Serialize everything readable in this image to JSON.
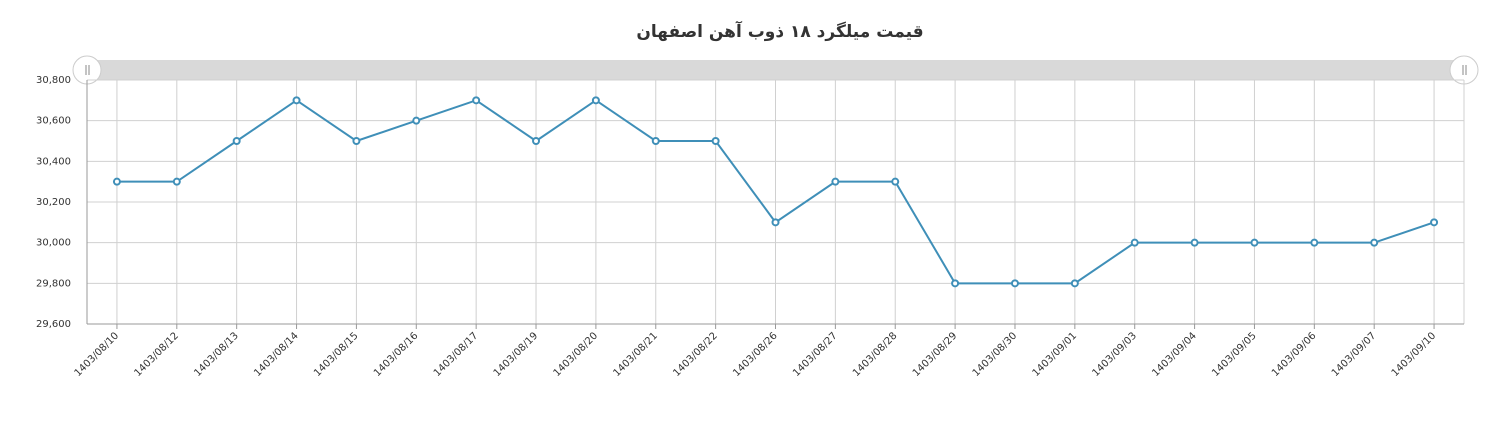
{
  "chart_data": {
    "type": "line",
    "title": "قیمت میلگرد ۱۸ ذوب آهن اصفهان",
    "categories": [
      "1403/08/10",
      "1403/08/12",
      "1403/08/13",
      "1403/08/14",
      "1403/08/15",
      "1403/08/16",
      "1403/08/17",
      "1403/08/19",
      "1403/08/20",
      "1403/08/21",
      "1403/08/22",
      "1403/08/26",
      "1403/08/27",
      "1403/08/28",
      "1403/08/29",
      "1403/08/30",
      "1403/09/01",
      "1403/09/03",
      "1403/09/04",
      "1403/09/05",
      "1403/09/06",
      "1403/09/07",
      "1403/09/10"
    ],
    "values": [
      30300,
      30300,
      30500,
      30700,
      30500,
      30600,
      30700,
      30500,
      30700,
      30500,
      30500,
      30100,
      30300,
      30300,
      29800,
      29800,
      29800,
      30000,
      30000,
      30000,
      30000,
      30000,
      30100
    ],
    "color": "#3f8fb8",
    "ylim": [
      29600,
      30800
    ],
    "yticks": [
      {
        "value": 29600,
        "label": "29,600"
      },
      {
        "value": 29800,
        "label": "29,800"
      },
      {
        "value": 30000,
        "label": "30,000"
      },
      {
        "value": 30200,
        "label": "30,200"
      },
      {
        "value": 30400,
        "label": "30,400"
      },
      {
        "value": 30600,
        "label": "30,600"
      },
      {
        "value": 30800,
        "label": "30,800"
      }
    ],
    "grid": true
  }
}
